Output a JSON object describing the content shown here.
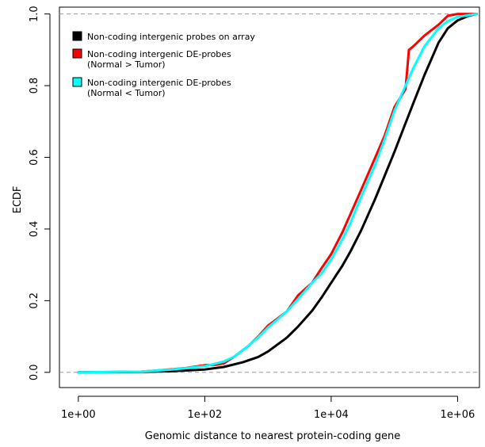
{
  "chart_data": {
    "type": "line",
    "xlabel": "Genomic distance to nearest protein-coding gene",
    "ylabel": "ECDF",
    "x_scale": "log10",
    "xlim": [
      1,
      2000000
    ],
    "ylim": [
      0,
      1
    ],
    "x_ticks": [
      1,
      100,
      10000,
      1000000
    ],
    "x_tick_labels": [
      "1e+00",
      "1e+02",
      "1e+04",
      "1e+06"
    ],
    "y_ticks": [
      0,
      0.2,
      0.4,
      0.6,
      0.8,
      1.0
    ],
    "y_tick_labels": [
      "0.0",
      "0.2",
      "0.4",
      "0.6",
      "0.8",
      "1.0"
    ],
    "reference_lines_y": [
      0,
      1
    ],
    "legend_position": "top-left",
    "series": [
      {
        "name": "Non-coding intergenic probes on array",
        "color": "#000000",
        "x": [
          1,
          10,
          30,
          100,
          200,
          400,
          700,
          1000,
          2000,
          3000,
          5000,
          7000,
          10000,
          15000,
          20000,
          30000,
          50000,
          70000,
          100000,
          150000,
          200000,
          300000,
          500000,
          700000,
          1000000,
          1500000,
          2000000
        ],
        "y": [
          0,
          0.001,
          0.003,
          0.008,
          0.015,
          0.028,
          0.043,
          0.058,
          0.097,
          0.128,
          0.172,
          0.208,
          0.25,
          0.297,
          0.336,
          0.397,
          0.485,
          0.548,
          0.615,
          0.695,
          0.752,
          0.83,
          0.92,
          0.96,
          0.982,
          0.995,
          1.0
        ]
      },
      {
        "name": "Non-coding intergenic DE-probes\n(Normal > Tumor)",
        "color": "#ff0000",
        "x": [
          1,
          10,
          20,
          50,
          100,
          150,
          200,
          300,
          500,
          700,
          1000,
          2000,
          3000,
          5000,
          7000,
          10000,
          15000,
          20000,
          30000,
          50000,
          70000,
          100000,
          150000,
          170000,
          200000,
          300000,
          500000,
          700000,
          1000000,
          2000000
        ],
        "y": [
          0,
          0.002,
          0.006,
          0.012,
          0.02,
          0.021,
          0.025,
          0.045,
          0.075,
          0.1,
          0.13,
          0.17,
          0.215,
          0.25,
          0.29,
          0.33,
          0.39,
          0.44,
          0.51,
          0.6,
          0.66,
          0.74,
          0.79,
          0.9,
          0.91,
          0.94,
          0.97,
          0.995,
          1.0,
          1.0
        ]
      },
      {
        "name": "Non-coding intergenic DE-probes\n(Normal < Tumor)",
        "color": "#00ffff",
        "x": [
          1,
          10,
          30,
          100,
          200,
          300,
          500,
          700,
          1000,
          2000,
          3000,
          5000,
          7000,
          10000,
          15000,
          20000,
          30000,
          50000,
          70000,
          100000,
          150000,
          200000,
          300000,
          500000,
          700000,
          1000000,
          2000000
        ],
        "y": [
          0,
          0.002,
          0.008,
          0.017,
          0.03,
          0.045,
          0.075,
          0.098,
          0.125,
          0.17,
          0.205,
          0.25,
          0.275,
          0.315,
          0.37,
          0.415,
          0.49,
          0.58,
          0.65,
          0.73,
          0.8,
          0.85,
          0.91,
          0.96,
          0.98,
          0.992,
          1.0
        ]
      }
    ]
  }
}
